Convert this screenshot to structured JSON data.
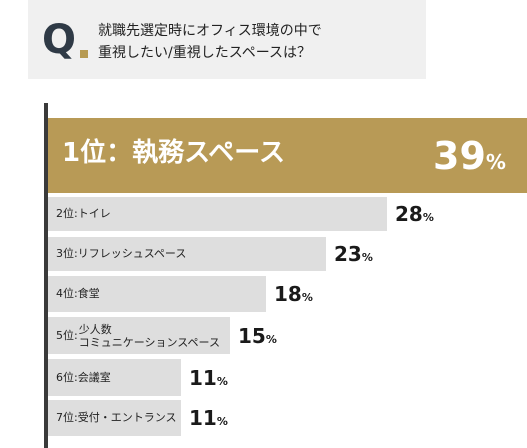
{
  "question": {
    "q_mark": "Q",
    "line1": "就職先選定時にオフィス環境の中で",
    "line2": "重視したい/重視したスペースは？"
  },
  "colors": {
    "accent": "#b89a56",
    "bar": "#dedede",
    "axis": "#3a3a3a",
    "question_bg": "#f0f0f0"
  },
  "chart_data": {
    "type": "bar",
    "orientation": "horizontal",
    "title": "就職先選定時にオフィス環境の中で重視したい/重視したスペースは？",
    "unit": "%",
    "categories": [
      "1位：執務スペース",
      "2位:トイレ",
      "3位:リフレッシュスペース",
      "4位:食堂",
      "5位:少人数コミュニケーションスペース",
      "6位:会議室",
      "7位:受付・エントランス"
    ],
    "values": [
      39,
      28,
      23,
      18,
      15,
      11,
      11
    ],
    "value_labels": [
      "39",
      "28",
      "23",
      "18",
      "15",
      "11",
      "11"
    ],
    "highlight_index": 0,
    "multiline_label": {
      "index": 4,
      "rank": "5位:",
      "lines": [
        "少人数",
        "コミュニケーションスペース"
      ]
    }
  }
}
